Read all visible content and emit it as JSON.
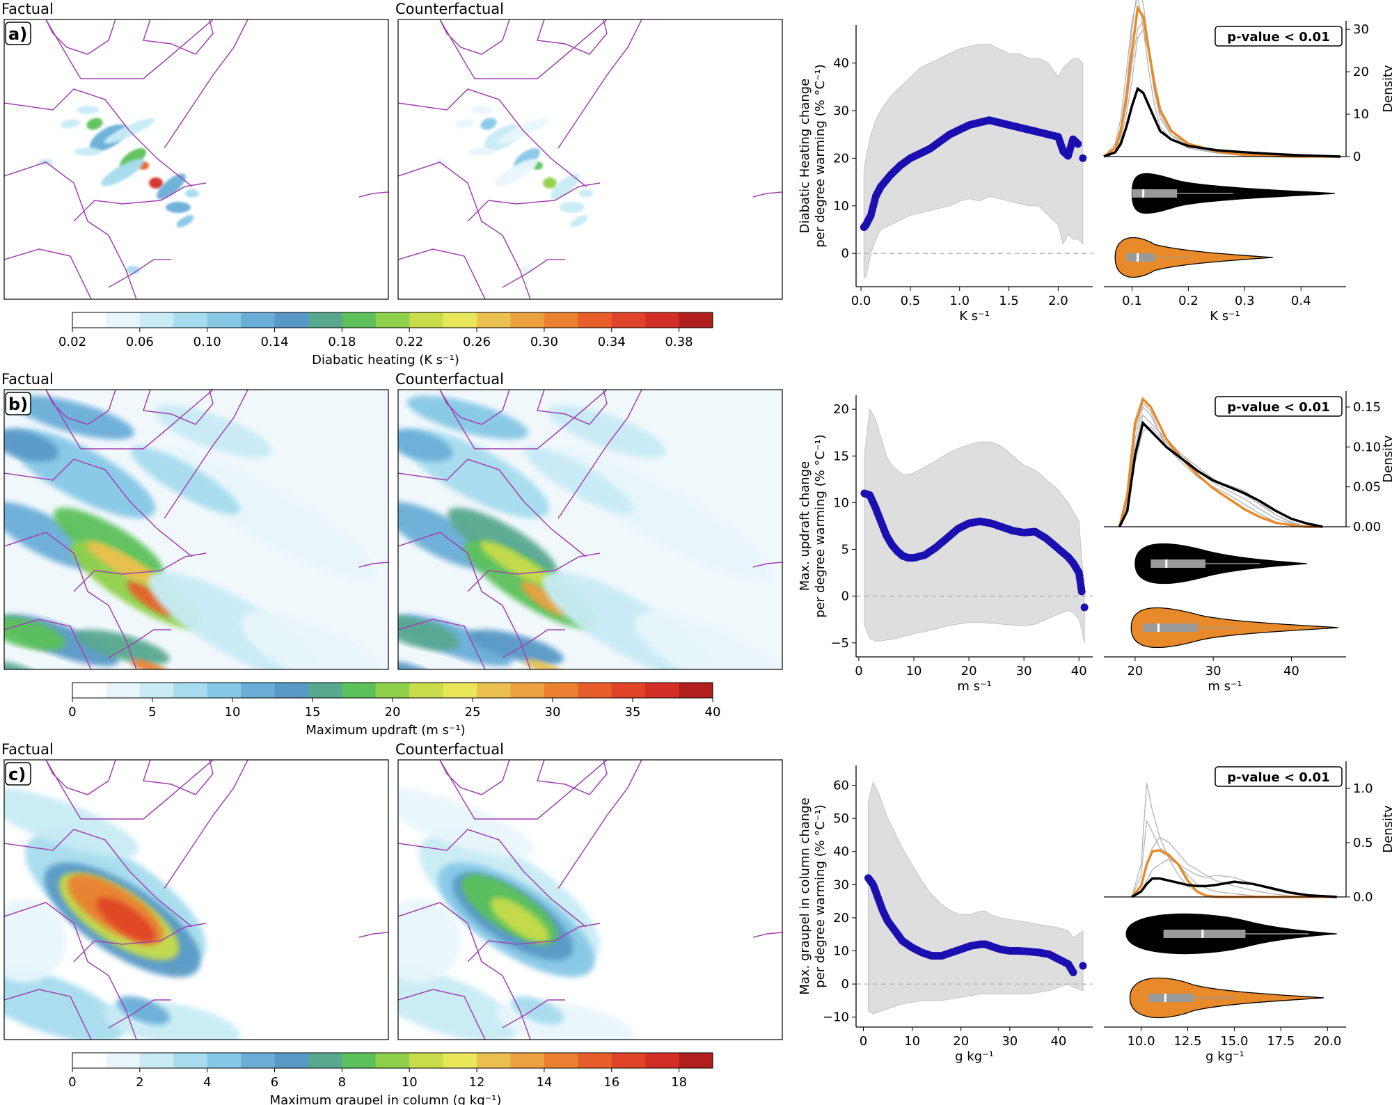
{
  "panels": [
    {
      "letter": "a)",
      "map_titles": [
        "Factual",
        "Counterfactual"
      ],
      "colorbar": {
        "label": "Diabatic heating (K s⁻¹)",
        "ticks": [
          "0.02",
          "0.06",
          "0.10",
          "0.14",
          "0.18",
          "0.22",
          "0.26",
          "0.30",
          "0.34",
          "0.38"
        ],
        "min": 0.02,
        "max": 0.4,
        "levels": 19
      },
      "pvalue": "p-value < 0.01"
    },
    {
      "letter": "b)",
      "map_titles": [
        "Factual",
        "Counterfactual"
      ],
      "colorbar": {
        "label": "Maximum updraft (m s⁻¹)",
        "ticks": [
          "0",
          "5",
          "10",
          "15",
          "20",
          "25",
          "30",
          "35",
          "40"
        ],
        "min": 0,
        "max": 40,
        "levels": 20
      },
      "pvalue": "p-value < 0.01"
    },
    {
      "letter": "c)",
      "map_titles": [
        "Factual",
        "Counterfactual"
      ],
      "colorbar": {
        "label": "Maximum graupel in column (g kg⁻¹)",
        "ticks": [
          "0",
          "2",
          "4",
          "6",
          "8",
          "10",
          "12",
          "14",
          "16",
          "18"
        ],
        "min": 0,
        "max": 19,
        "levels": 19
      },
      "pvalue": "p-value < 0.01"
    }
  ],
  "colors": {
    "scatter": "#1a0fb0",
    "band": "#dedede",
    "factual": "#000000",
    "counterfactual": "#e8892a",
    "members": "#b4b4b4",
    "boundary": "#a040b0",
    "colormap": [
      "#ffffff",
      "#e8f6fb",
      "#c8ebf5",
      "#a6dcee",
      "#86c8e6",
      "#6aaed8",
      "#5899c6",
      "#58a890",
      "#5cc15a",
      "#8fd04a",
      "#c8dc4c",
      "#eae65a",
      "#ecc050",
      "#eca040",
      "#ea8030",
      "#e85e2a",
      "#e04428",
      "#d22e26",
      "#b01e1e"
    ]
  },
  "chart_data": [
    {
      "type": "scatter",
      "xlabel": "K s⁻¹",
      "ylabel": "Diabatic Heating change\nper degree warming (% °C⁻¹)",
      "xlim": [
        -0.05,
        2.35
      ],
      "ylim": [
        -7,
        48
      ],
      "xticks": [
        0.0,
        0.5,
        1.0,
        1.5,
        2.0
      ],
      "xtick_labels": [
        "0.0",
        "0.5",
        "1.0",
        "1.5",
        "2.0"
      ],
      "yticks": [
        0,
        10,
        20,
        30,
        40
      ],
      "ytick_labels": [
        "0",
        "10",
        "20",
        "30",
        "40"
      ],
      "zero_line": true,
      "x": [
        0.03,
        0.05,
        0.1,
        0.15,
        0.2,
        0.3,
        0.4,
        0.5,
        0.6,
        0.7,
        0.8,
        0.9,
        1.0,
        1.1,
        1.2,
        1.3,
        1.4,
        1.5,
        1.6,
        1.7,
        1.8,
        1.9,
        2.0,
        2.05,
        2.1,
        2.15,
        2.2,
        2.25
      ],
      "y": [
        5.5,
        6.0,
        8.0,
        12.0,
        14.0,
        16.5,
        18.5,
        20.0,
        21.0,
        22.0,
        23.5,
        25.0,
        26.0,
        27.0,
        27.5,
        28.0,
        27.5,
        27.0,
        26.5,
        26.0,
        25.5,
        25.0,
        24.5,
        21.5,
        20.5,
        24.0,
        23.0,
        20.0
      ],
      "band_lower": [
        -5,
        -5,
        0,
        3,
        5,
        6,
        7,
        8,
        8.5,
        9,
        9.5,
        10,
        11,
        11.5,
        11,
        12,
        11.5,
        11,
        10.5,
        10,
        10,
        8,
        6,
        2,
        4,
        3,
        3,
        2
      ],
      "band_upper": [
        17,
        20,
        25,
        28,
        30,
        33,
        35,
        37,
        39,
        40,
        41,
        42,
        43,
        43.5,
        44,
        44,
        43,
        42,
        42,
        41,
        41,
        40,
        37,
        39,
        40,
        41,
        41,
        40
      ],
      "kde": {
        "xlabel": "K s⁻¹",
        "xlim": [
          0.05,
          0.48
        ],
        "xticks": [
          0.1,
          0.2,
          0.3,
          0.4
        ],
        "xtick_labels": [
          "0.1",
          "0.2",
          "0.3",
          "0.4"
        ],
        "ylabel": "Density",
        "ylim": [
          0,
          32
        ],
        "yticks": [
          0,
          10,
          20,
          30
        ],
        "ytick_labels": [
          "0",
          "10",
          "20",
          "30"
        ],
        "x": [
          0.05,
          0.07,
          0.08,
          0.09,
          0.1,
          0.11,
          0.12,
          0.13,
          0.14,
          0.15,
          0.17,
          0.2,
          0.25,
          0.3,
          0.35,
          0.4,
          0.47
        ],
        "factual": [
          0,
          1,
          3,
          7,
          12,
          16,
          15,
          12,
          9,
          6,
          4,
          2.5,
          1.5,
          1.0,
          0.6,
          0.3,
          0
        ],
        "counterfactual": [
          0,
          2,
          6,
          14,
          25,
          35,
          33,
          25,
          17,
          11,
          6,
          3,
          1.2,
          0.4,
          0.1,
          0,
          0
        ],
        "members": [
          [
            0,
            1,
            4,
            10,
            18,
            28,
            30,
            24,
            15,
            9,
            5,
            3,
            1.5,
            0.5,
            0.2,
            0,
            0
          ],
          [
            0,
            2,
            7,
            16,
            30,
            40,
            36,
            26,
            16,
            10,
            5,
            2,
            1,
            0.3,
            0,
            0,
            0
          ],
          [
            0,
            1,
            5,
            12,
            22,
            30,
            32,
            26,
            18,
            11,
            6,
            3,
            1.5,
            0.5,
            0.2,
            0,
            0
          ],
          [
            0,
            3,
            9,
            20,
            32,
            38,
            30,
            20,
            12,
            7,
            4,
            2,
            0.8,
            0.2,
            0,
            0,
            0
          ]
        ]
      },
      "violins": {
        "factual": {
          "min": 0.1,
          "q1": 0.1,
          "median": 0.12,
          "q3": 0.18,
          "max": 0.46,
          "whisker": 0.28
        },
        "counterfactual": {
          "min": 0.07,
          "q1": 0.09,
          "median": 0.11,
          "q3": 0.14,
          "max": 0.35,
          "whisker": 0.2
        }
      }
    },
    {
      "type": "scatter",
      "xlabel": "m s⁻¹",
      "ylabel": "Max. updraft change\nper degree warming (% °C⁻¹)",
      "xlim": [
        -0.5,
        42.5
      ],
      "ylim": [
        -6.5,
        21.5
      ],
      "xticks": [
        0,
        10,
        20,
        30,
        40
      ],
      "xtick_labels": [
        "0",
        "10",
        "20",
        "30",
        "40"
      ],
      "yticks": [
        -5,
        0,
        5,
        10,
        15,
        20
      ],
      "ytick_labels": [
        "−5",
        "0",
        "5",
        "10",
        "15",
        "20"
      ],
      "zero_line": true,
      "x": [
        1,
        2,
        3,
        4,
        5,
        6,
        7,
        8,
        9,
        10,
        12,
        14,
        16,
        18,
        20,
        22,
        24,
        26,
        28,
        30,
        32,
        34,
        36,
        38,
        39,
        40,
        40.5,
        41
      ],
      "y": [
        11,
        10.8,
        9.5,
        8,
        6.5,
        5.5,
        4.8,
        4.3,
        4.1,
        4.1,
        4.4,
        5.2,
        6.2,
        7.2,
        7.8,
        8.0,
        7.8,
        7.4,
        7.0,
        6.8,
        6.9,
        6.2,
        5.2,
        4.2,
        3.5,
        2.5,
        0.5,
        -1.2
      ],
      "band_lower": [
        -3,
        -4.5,
        -4.8,
        -4.8,
        -4.7,
        -4.6,
        -4.5,
        -4.3,
        -4.2,
        -4.0,
        -3.8,
        -3.5,
        -3.2,
        -3.0,
        -2.8,
        -2.8,
        -2.9,
        -3.0,
        -3.1,
        -3.2,
        -3.0,
        -2.5,
        -2.0,
        -1.5,
        -1.8,
        -2.5,
        -3.5,
        -5.0
      ],
      "band_upper": [
        15,
        20,
        19,
        17,
        15,
        14,
        13.5,
        13,
        13,
        13.2,
        13.8,
        14.5,
        15.2,
        15.8,
        16.2,
        16.5,
        16.5,
        16,
        15,
        14,
        13.5,
        12.5,
        11.5,
        10,
        9,
        8,
        4,
        1
      ],
      "kde": {
        "xlabel": "m s⁻¹",
        "xlim": [
          16,
          47
        ],
        "xticks": [
          20,
          30,
          40
        ],
        "xtick_labels": [
          "20",
          "30",
          "40"
        ],
        "ylabel": "Density",
        "ylim": [
          0,
          0.17
        ],
        "yticks": [
          0.0,
          0.05,
          0.1,
          0.15
        ],
        "ytick_labels": [
          "0.00",
          "0.05",
          "0.10",
          "0.15"
        ],
        "x": [
          18,
          19,
          20,
          21,
          22,
          23,
          24,
          26,
          28,
          30,
          32,
          34,
          36,
          38,
          40,
          42,
          44
        ],
        "factual": [
          0,
          0.02,
          0.09,
          0.13,
          0.12,
          0.11,
          0.1,
          0.085,
          0.07,
          0.058,
          0.05,
          0.042,
          0.032,
          0.02,
          0.01,
          0.004,
          0
        ],
        "counterfactual": [
          0,
          0.04,
          0.13,
          0.16,
          0.15,
          0.13,
          0.11,
          0.085,
          0.065,
          0.048,
          0.035,
          0.022,
          0.012,
          0.005,
          0.002,
          0,
          0
        ],
        "members": [
          [
            0,
            0.03,
            0.11,
            0.15,
            0.14,
            0.12,
            0.105,
            0.085,
            0.07,
            0.055,
            0.045,
            0.035,
            0.022,
            0.01,
            0.004,
            0,
            0
          ],
          [
            0,
            0.02,
            0.08,
            0.12,
            0.125,
            0.115,
            0.105,
            0.09,
            0.075,
            0.06,
            0.05,
            0.04,
            0.028,
            0.015,
            0.006,
            0,
            0
          ],
          [
            0,
            0.035,
            0.12,
            0.155,
            0.145,
            0.12,
            0.1,
            0.08,
            0.062,
            0.05,
            0.04,
            0.028,
            0.016,
            0.006,
            0.002,
            0,
            0
          ],
          [
            0,
            0.025,
            0.1,
            0.14,
            0.13,
            0.12,
            0.11,
            0.09,
            0.07,
            0.058,
            0.052,
            0.045,
            0.03,
            0.015,
            0.005,
            0,
            0
          ]
        ]
      },
      "violins": {
        "factual": {
          "min": 20,
          "q1": 22,
          "median": 24,
          "q3": 29,
          "max": 42,
          "whisker": 36
        },
        "counterfactual": {
          "min": 19.5,
          "q1": 21,
          "median": 23,
          "q3": 28,
          "max": 46,
          "whisker": 33
        }
      }
    },
    {
      "type": "scatter",
      "xlabel": "g kg⁻¹",
      "ylabel": "Max. graupel in column change\nper degree warming (% °C⁻¹)",
      "xlim": [
        -1.5,
        47
      ],
      "ylim": [
        -13,
        66
      ],
      "xticks": [
        0,
        10,
        20,
        30,
        40
      ],
      "xtick_labels": [
        "0",
        "10",
        "20",
        "30",
        "40"
      ],
      "yticks": [
        -10,
        0,
        10,
        20,
        30,
        40,
        50,
        60
      ],
      "ytick_labels": [
        "−10",
        "0",
        "10",
        "20",
        "30",
        "40",
        "50",
        "60"
      ],
      "zero_line": true,
      "x": [
        1,
        2,
        3,
        4,
        5,
        6,
        7,
        8,
        10,
        12,
        14,
        16,
        18,
        20,
        22,
        24,
        25,
        26,
        28,
        30,
        32,
        34,
        36,
        38,
        40,
        42,
        43,
        45
      ],
      "y": [
        32,
        30,
        26,
        22,
        19,
        17,
        15,
        13,
        11,
        9.5,
        8.5,
        8.5,
        9.5,
        10.5,
        11.5,
        12.0,
        12.0,
        11.5,
        10.5,
        10.0,
        10.0,
        9.8,
        9.5,
        9.0,
        7.5,
        6.0,
        3.5,
        5.5
      ],
      "band_lower": [
        -8,
        -9,
        -8.5,
        -8,
        -7.5,
        -7,
        -6.5,
        -6,
        -5.5,
        -5,
        -5,
        -5,
        -4.5,
        -4,
        -3.5,
        -3,
        -3,
        -3,
        -3,
        -3,
        -3,
        -3,
        -2.5,
        -2,
        -1,
        0,
        -1,
        -2
      ],
      "band_upper": [
        55,
        61,
        58,
        54,
        50,
        47,
        44,
        41,
        36,
        31,
        27,
        24,
        22,
        21,
        21,
        22,
        22,
        21,
        20,
        19.5,
        19,
        18.5,
        18,
        17.5,
        17,
        16,
        14,
        16
      ],
      "kde": {
        "xlabel": "g kg⁻¹",
        "xlim": [
          8,
          21
        ],
        "xticks": [
          10.0,
          12.5,
          15.0,
          17.5,
          20.0
        ],
        "xtick_labels": [
          "10.0",
          "12.5",
          "15.0",
          "17.5",
          "20.0"
        ],
        "ylabel": "Density",
        "ylim": [
          0,
          1.25
        ],
        "yticks": [
          0.0,
          0.5,
          1.0
        ],
        "ytick_labels": [
          "0.0",
          "0.5",
          "1.0"
        ],
        "x": [
          9.5,
          10.0,
          10.3,
          10.6,
          11.0,
          11.5,
          12.0,
          12.5,
          13.0,
          13.5,
          14.0,
          15.0,
          16.0,
          17.0,
          18.0,
          19.0,
          20.5
        ],
        "factual": [
          0,
          0.05,
          0.12,
          0.17,
          0.17,
          0.15,
          0.13,
          0.11,
          0.1,
          0.1,
          0.11,
          0.14,
          0.12,
          0.08,
          0.04,
          0.015,
          0
        ],
        "counterfactual": [
          0,
          0.1,
          0.3,
          0.42,
          0.43,
          0.38,
          0.3,
          0.15,
          0.05,
          0.01,
          0,
          0,
          0,
          0,
          0,
          0,
          0
        ],
        "members": [
          [
            0,
            0.3,
            1.05,
            0.8,
            0.55,
            0.35,
            0.2,
            0.1,
            0.05,
            0.02,
            0.01,
            0,
            0,
            0,
            0,
            0,
            0
          ],
          [
            0,
            0.2,
            0.7,
            0.6,
            0.45,
            0.4,
            0.3,
            0.2,
            0.12,
            0.08,
            0.05,
            0.03,
            0.01,
            0,
            0,
            0,
            0
          ],
          [
            0,
            0.1,
            0.3,
            0.45,
            0.55,
            0.5,
            0.4,
            0.3,
            0.25,
            0.2,
            0.15,
            0.1,
            0.06,
            0.03,
            0.01,
            0,
            0
          ],
          [
            0,
            0.05,
            0.15,
            0.25,
            0.3,
            0.35,
            0.3,
            0.25,
            0.2,
            0.18,
            0.2,
            0.18,
            0.12,
            0.07,
            0.03,
            0.01,
            0
          ]
        ]
      },
      "violins": {
        "factual": {
          "min": 9.2,
          "q1": 11.2,
          "median": 13.3,
          "q3": 15.6,
          "max": 20.5,
          "whisker": 19
        },
        "counterfactual": {
          "min": 9.4,
          "q1": 10.4,
          "median": 11.3,
          "q3": 12.8,
          "max": 19.8,
          "whisker": 15
        }
      }
    }
  ]
}
